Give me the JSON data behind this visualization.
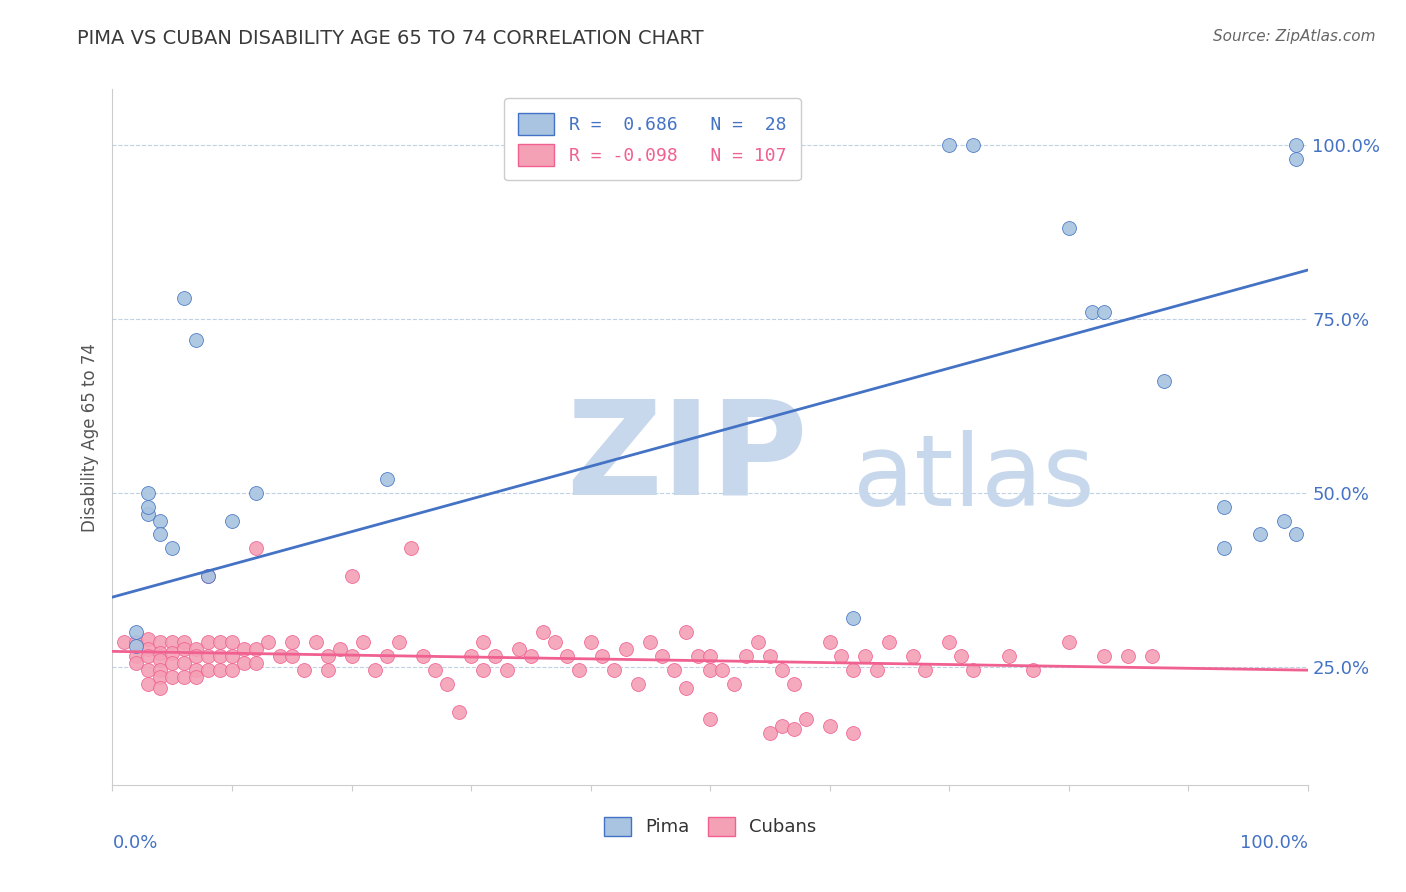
{
  "title": "PIMA VS CUBAN DISABILITY AGE 65 TO 74 CORRELATION CHART",
  "source": "Source: ZipAtlas.com",
  "ylabel": "Disability Age 65 to 74",
  "ytick_labels": [
    "25.0%",
    "50.0%",
    "75.0%",
    "100.0%"
  ],
  "ytick_values": [
    0.25,
    0.5,
    0.75,
    1.0
  ],
  "pima_color": "#a8c4e0",
  "cubans_color": "#f4a0b5",
  "pima_line_color": "#4472c4",
  "cubans_line_color": "#f06090",
  "title_color": "#3a3a3a",
  "watermark_zip_color": "#c8d8ec",
  "watermark_atlas_color": "#c8d8ec",
  "background_color": "#ffffff",
  "grid_color": "#b8cce0",
  "xlim": [
    0.0,
    1.0
  ],
  "ylim": [
    0.08,
    1.08
  ],
  "pima_line_x0": 0.0,
  "pima_line_y0": 0.35,
  "pima_line_x1": 1.0,
  "pima_line_y1": 0.82,
  "cubans_line_x0": 0.0,
  "cubans_line_y0": 0.272,
  "cubans_line_x1": 1.0,
  "cubans_line_y1": 0.245,
  "pima_points": [
    [
      0.02,
      0.28
    ],
    [
      0.02,
      0.3
    ],
    [
      0.03,
      0.47
    ],
    [
      0.03,
      0.5
    ],
    [
      0.04,
      0.46
    ],
    [
      0.04,
      0.44
    ],
    [
      0.05,
      0.42
    ],
    [
      0.06,
      0.78
    ],
    [
      0.07,
      0.72
    ],
    [
      0.08,
      0.38
    ],
    [
      0.1,
      0.46
    ],
    [
      0.12,
      0.5
    ],
    [
      0.23,
      0.52
    ],
    [
      0.62,
      0.32
    ],
    [
      0.7,
      1.0
    ],
    [
      0.72,
      1.0
    ],
    [
      0.8,
      0.88
    ],
    [
      0.82,
      0.76
    ],
    [
      0.83,
      0.76
    ],
    [
      0.88,
      0.66
    ],
    [
      0.93,
      0.48
    ],
    [
      0.93,
      0.42
    ],
    [
      0.96,
      0.44
    ],
    [
      0.98,
      0.46
    ],
    [
      0.99,
      0.44
    ],
    [
      0.99,
      1.0
    ],
    [
      0.99,
      0.98
    ],
    [
      0.03,
      0.48
    ]
  ],
  "cubans_points": [
    [
      0.01,
      0.285
    ],
    [
      0.02,
      0.285
    ],
    [
      0.02,
      0.265
    ],
    [
      0.02,
      0.255
    ],
    [
      0.03,
      0.29
    ],
    [
      0.03,
      0.275
    ],
    [
      0.03,
      0.265
    ],
    [
      0.03,
      0.245
    ],
    [
      0.03,
      0.225
    ],
    [
      0.04,
      0.285
    ],
    [
      0.04,
      0.27
    ],
    [
      0.04,
      0.26
    ],
    [
      0.04,
      0.245
    ],
    [
      0.04,
      0.235
    ],
    [
      0.04,
      0.22
    ],
    [
      0.05,
      0.285
    ],
    [
      0.05,
      0.27
    ],
    [
      0.05,
      0.255
    ],
    [
      0.05,
      0.235
    ],
    [
      0.06,
      0.285
    ],
    [
      0.06,
      0.275
    ],
    [
      0.06,
      0.255
    ],
    [
      0.06,
      0.235
    ],
    [
      0.07,
      0.275
    ],
    [
      0.07,
      0.265
    ],
    [
      0.07,
      0.245
    ],
    [
      0.07,
      0.235
    ],
    [
      0.08,
      0.38
    ],
    [
      0.08,
      0.285
    ],
    [
      0.08,
      0.265
    ],
    [
      0.08,
      0.245
    ],
    [
      0.09,
      0.285
    ],
    [
      0.09,
      0.265
    ],
    [
      0.09,
      0.245
    ],
    [
      0.1,
      0.285
    ],
    [
      0.1,
      0.265
    ],
    [
      0.1,
      0.245
    ],
    [
      0.11,
      0.275
    ],
    [
      0.11,
      0.255
    ],
    [
      0.12,
      0.42
    ],
    [
      0.12,
      0.275
    ],
    [
      0.12,
      0.255
    ],
    [
      0.13,
      0.285
    ],
    [
      0.14,
      0.265
    ],
    [
      0.15,
      0.285
    ],
    [
      0.15,
      0.265
    ],
    [
      0.16,
      0.245
    ],
    [
      0.17,
      0.285
    ],
    [
      0.18,
      0.265
    ],
    [
      0.18,
      0.245
    ],
    [
      0.19,
      0.275
    ],
    [
      0.2,
      0.265
    ],
    [
      0.2,
      0.38
    ],
    [
      0.21,
      0.285
    ],
    [
      0.22,
      0.245
    ],
    [
      0.23,
      0.265
    ],
    [
      0.24,
      0.285
    ],
    [
      0.25,
      0.42
    ],
    [
      0.26,
      0.265
    ],
    [
      0.27,
      0.245
    ],
    [
      0.28,
      0.225
    ],
    [
      0.29,
      0.185
    ],
    [
      0.3,
      0.265
    ],
    [
      0.31,
      0.245
    ],
    [
      0.31,
      0.285
    ],
    [
      0.32,
      0.265
    ],
    [
      0.33,
      0.245
    ],
    [
      0.34,
      0.275
    ],
    [
      0.35,
      0.265
    ],
    [
      0.36,
      0.3
    ],
    [
      0.37,
      0.285
    ],
    [
      0.38,
      0.265
    ],
    [
      0.39,
      0.245
    ],
    [
      0.4,
      0.285
    ],
    [
      0.41,
      0.265
    ],
    [
      0.42,
      0.245
    ],
    [
      0.43,
      0.275
    ],
    [
      0.44,
      0.225
    ],
    [
      0.45,
      0.285
    ],
    [
      0.46,
      0.265
    ],
    [
      0.47,
      0.245
    ],
    [
      0.48,
      0.3
    ],
    [
      0.49,
      0.265
    ],
    [
      0.5,
      0.245
    ],
    [
      0.5,
      0.265
    ],
    [
      0.51,
      0.245
    ],
    [
      0.52,
      0.225
    ],
    [
      0.53,
      0.265
    ],
    [
      0.54,
      0.285
    ],
    [
      0.55,
      0.265
    ],
    [
      0.56,
      0.245
    ],
    [
      0.57,
      0.225
    ],
    [
      0.6,
      0.285
    ],
    [
      0.61,
      0.265
    ],
    [
      0.62,
      0.245
    ],
    [
      0.63,
      0.265
    ],
    [
      0.64,
      0.245
    ],
    [
      0.65,
      0.285
    ],
    [
      0.67,
      0.265
    ],
    [
      0.68,
      0.245
    ],
    [
      0.7,
      0.285
    ],
    [
      0.71,
      0.265
    ],
    [
      0.72,
      0.245
    ],
    [
      0.75,
      0.265
    ],
    [
      0.77,
      0.245
    ],
    [
      0.8,
      0.285
    ],
    [
      0.83,
      0.265
    ],
    [
      0.85,
      0.265
    ],
    [
      0.87,
      0.265
    ],
    [
      0.5,
      0.175
    ],
    [
      0.55,
      0.155
    ],
    [
      0.56,
      0.165
    ],
    [
      0.57,
      0.16
    ],
    [
      0.58,
      0.175
    ],
    [
      0.6,
      0.165
    ],
    [
      0.62,
      0.155
    ],
    [
      0.48,
      0.22
    ]
  ]
}
